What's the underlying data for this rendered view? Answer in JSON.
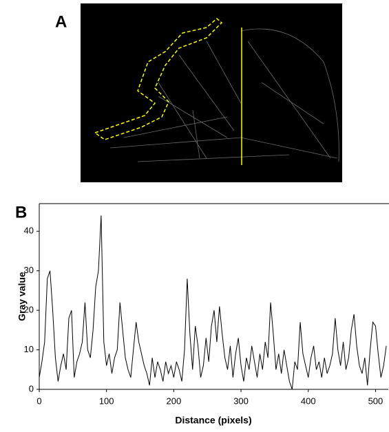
{
  "panel_a": {
    "label": "A"
  },
  "chart_data": {
    "type": "line",
    "panel_label": "B",
    "x_label": "Distance (pixels)",
    "y_label": "Gray value",
    "x": [
      0,
      4,
      8,
      12,
      16,
      20,
      24,
      28,
      32,
      36,
      40,
      44,
      48,
      52,
      56,
      60,
      64,
      68,
      72,
      76,
      80,
      84,
      88,
      92,
      96,
      100,
      104,
      108,
      112,
      116,
      120,
      124,
      128,
      132,
      136,
      140,
      144,
      148,
      152,
      156,
      160,
      164,
      168,
      172,
      176,
      180,
      184,
      188,
      192,
      196,
      200,
      204,
      208,
      212,
      216,
      220,
      224,
      228,
      232,
      236,
      240,
      244,
      248,
      252,
      256,
      260,
      264,
      268,
      272,
      276,
      280,
      284,
      288,
      292,
      296,
      300,
      304,
      308,
      312,
      316,
      320,
      324,
      328,
      332,
      336,
      340,
      344,
      348,
      352,
      356,
      360,
      364,
      368,
      372,
      376,
      380,
      384,
      388,
      392,
      396,
      400,
      404,
      408,
      412,
      416,
      420,
      424,
      428,
      432,
      436,
      440,
      444,
      448,
      452,
      456,
      460,
      464,
      468,
      472,
      476,
      480,
      484,
      488,
      492,
      496,
      500,
      504,
      508,
      512,
      516
    ],
    "series": [
      {
        "name": "Gray value",
        "color": "#000000",
        "values": [
          3,
          7,
          12,
          28,
          30,
          20,
          8,
          2,
          6,
          9,
          5,
          18,
          20,
          3,
          7,
          9,
          12,
          22,
          10,
          8,
          15,
          26,
          30,
          44,
          12,
          6,
          9,
          4,
          8,
          10,
          22,
          15,
          8,
          5,
          3,
          10,
          17,
          12,
          9,
          6,
          4,
          1,
          8,
          3,
          7,
          5,
          2,
          7,
          4,
          6,
          3,
          7,
          5,
          2,
          10,
          28,
          14,
          5,
          16,
          11,
          3,
          6,
          13,
          7,
          16,
          20,
          12,
          21,
          14,
          8,
          5,
          11,
          3,
          9,
          13,
          6,
          2,
          8,
          5,
          11,
          7,
          3,
          9,
          5,
          12,
          8,
          22,
          14,
          5,
          9,
          4,
          10,
          6,
          2,
          0,
          7,
          5,
          17,
          9,
          6,
          3,
          8,
          11,
          5,
          7,
          3,
          8,
          4,
          6,
          9,
          18,
          10,
          6,
          12,
          5,
          8,
          15,
          19,
          11,
          6,
          4,
          8,
          1,
          10,
          17,
          16,
          9,
          3,
          6,
          11
        ]
      }
    ],
    "xlim": [
      0,
      519
    ],
    "ylim": [
      0,
      47
    ],
    "xticks": [
      0,
      100,
      200,
      300,
      400,
      500
    ],
    "yticks": [
      0,
      10,
      20,
      30,
      40
    ]
  }
}
